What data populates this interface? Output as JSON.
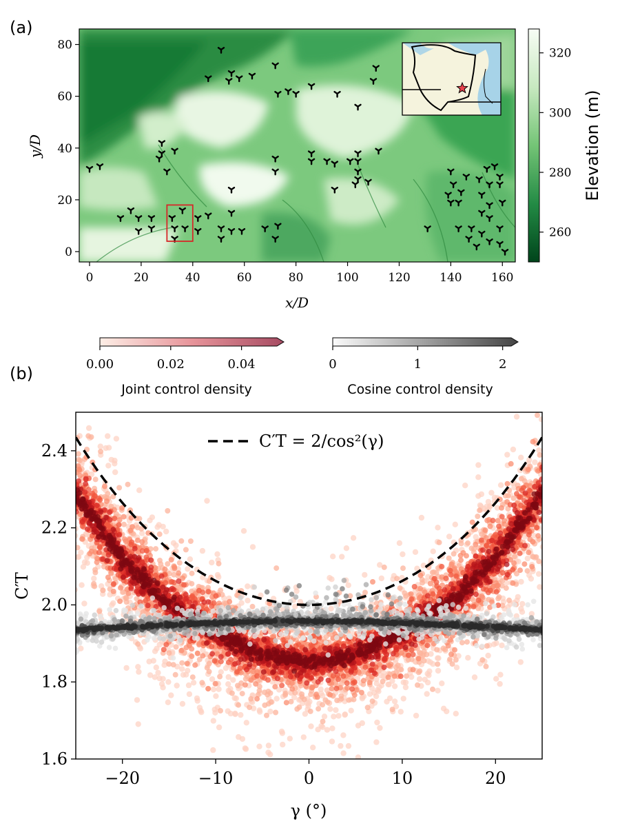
{
  "chart_data": [
    {
      "panel": "(a)",
      "type": "heatmap",
      "xlabel": "x/D",
      "ylabel": "y/D",
      "xlim": [
        -4,
        165
      ],
      "ylim": [
        -4,
        86
      ],
      "xticks": [
        0,
        20,
        40,
        60,
        80,
        100,
        120,
        140,
        160
      ],
      "yticks": [
        0,
        20,
        40,
        60,
        80
      ],
      "colorbar": {
        "label": "Elevation (m)",
        "range": [
          250,
          328
        ],
        "ticks": [
          260,
          280,
          300,
          320
        ]
      },
      "turbines": [
        [
          0,
          32
        ],
        [
          4,
          33
        ],
        [
          12,
          13
        ],
        [
          16,
          16
        ],
        [
          19,
          13
        ],
        [
          19,
          8
        ],
        [
          24,
          13
        ],
        [
          24,
          9
        ],
        [
          27,
          36
        ],
        [
          28,
          38
        ],
        [
          28,
          42
        ],
        [
          30,
          31
        ],
        [
          33,
          39
        ],
        [
          32,
          13
        ],
        [
          33,
          9
        ],
        [
          33,
          5
        ],
        [
          36,
          16
        ],
        [
          37,
          9
        ],
        [
          42,
          13
        ],
        [
          42,
          8
        ],
        [
          46,
          14
        ],
        [
          46,
          67
        ],
        [
          51,
          78
        ],
        [
          51,
          9
        ],
        [
          51,
          5
        ],
        [
          55,
          24
        ],
        [
          55,
          15
        ],
        [
          55,
          8
        ],
        [
          54,
          66
        ],
        [
          55,
          69
        ],
        [
          58,
          67
        ],
        [
          59,
          8
        ],
        [
          63,
          68
        ],
        [
          68,
          9
        ],
        [
          72,
          72
        ],
        [
          72,
          36
        ],
        [
          72,
          31
        ],
        [
          73,
          61
        ],
        [
          73,
          10
        ],
        [
          72,
          5
        ],
        [
          77,
          62
        ],
        [
          80,
          61
        ],
        [
          86,
          64
        ],
        [
          86,
          38
        ],
        [
          86,
          35
        ],
        [
          92,
          35
        ],
        [
          95,
          34
        ],
        [
          95,
          24
        ],
        [
          96,
          61
        ],
        [
          101,
          35
        ],
        [
          103,
          26
        ],
        [
          104,
          56
        ],
        [
          104,
          38
        ],
        [
          104,
          35
        ],
        [
          104,
          31
        ],
        [
          104,
          28
        ],
        [
          108,
          27
        ],
        [
          110,
          66
        ],
        [
          111,
          71
        ],
        [
          112,
          39
        ],
        [
          131,
          9
        ],
        [
          139,
          22
        ],
        [
          140,
          19
        ],
        [
          140,
          31
        ],
        [
          141,
          26
        ],
        [
          143,
          19
        ],
        [
          144,
          23
        ],
        [
          143,
          9
        ],
        [
          146,
          29
        ],
        [
          147,
          5
        ],
        [
          148,
          9
        ],
        [
          150,
          2
        ],
        [
          151,
          28
        ],
        [
          152,
          22
        ],
        [
          152,
          15
        ],
        [
          152,
          7
        ],
        [
          154,
          32
        ],
        [
          155,
          26
        ],
        [
          155,
          18
        ],
        [
          155,
          13
        ],
        [
          155,
          4
        ],
        [
          157,
          33
        ],
        [
          159,
          29
        ],
        [
          159,
          26
        ],
        [
          159,
          9
        ],
        [
          159,
          3
        ],
        [
          160,
          19
        ],
        [
          161,
          0
        ]
      ],
      "highlight_box": {
        "x": [
          30,
          40
        ],
        "y": [
          4,
          18
        ]
      },
      "inset": {
        "marker": "star",
        "marker_color": "#e8414b"
      }
    },
    {
      "panel": "(b)",
      "type": "scatter",
      "xlabel": "γ (°)",
      "ylabel": "C′T",
      "xlim": [
        -25,
        25
      ],
      "ylim": [
        1.6,
        2.5
      ],
      "xticks": [
        -20,
        -10,
        0,
        10,
        20
      ],
      "yticks": [
        1.6,
        1.8,
        2.0,
        2.2,
        2.4
      ],
      "series": [
        {
          "name": "C′T = 2/cos²(γ)",
          "style": "dashed",
          "color": "#000000",
          "x": [
            -25,
            -20,
            -15,
            -10,
            -5,
            0,
            5,
            10,
            15,
            20,
            25
          ],
          "values": [
            2.435,
            2.265,
            2.144,
            2.062,
            2.015,
            2.0,
            2.015,
            2.062,
            2.144,
            2.265,
            2.435
          ]
        },
        {
          "name": "Joint control density",
          "type": "scatter-density",
          "colormap": "Reds",
          "trend_x": [
            -25,
            -20,
            -15,
            -10,
            -5,
            0,
            5,
            10,
            15,
            20,
            25
          ],
          "trend_values": [
            2.29,
            2.12,
            2.0,
            1.93,
            1.87,
            1.85,
            1.87,
            1.93,
            2.0,
            2.12,
            2.29
          ]
        },
        {
          "name": "Cosine control density",
          "type": "scatter-density",
          "colormap": "Greys",
          "trend_x": [
            -25,
            -20,
            -15,
            -10,
            -5,
            0,
            5,
            10,
            15,
            20,
            25
          ],
          "trend_values": [
            1.935,
            1.942,
            1.948,
            1.953,
            1.957,
            1.958,
            1.957,
            1.953,
            1.948,
            1.942,
            1.935
          ]
        }
      ],
      "colorbars": [
        {
          "label": "Joint control density",
          "range": [
            0,
            0.05
          ],
          "ticks": [
            "0.00",
            "0.02",
            "0.04"
          ],
          "from": "#fde8df",
          "to": "#b0576a"
        },
        {
          "label": "Cosine control density",
          "range": [
            0,
            2.1
          ],
          "ticks": [
            "0",
            "1",
            "2"
          ],
          "from": "#fafafa",
          "to": "#4a4a4a"
        }
      ]
    }
  ],
  "panel_labels": [
    "(a)",
    "(b)"
  ],
  "colors": {
    "terrain_dark": "#0b5a2a",
    "terrain_mid": "#59b86a",
    "terrain_light": "#f4fbf1",
    "joint_dark": "#6b0009",
    "joint_light": "#fcbba1",
    "cosine": "#3a3a3a",
    "box": "#d62728",
    "lake": "#a7d3e8",
    "land": "#f5f3dd"
  }
}
